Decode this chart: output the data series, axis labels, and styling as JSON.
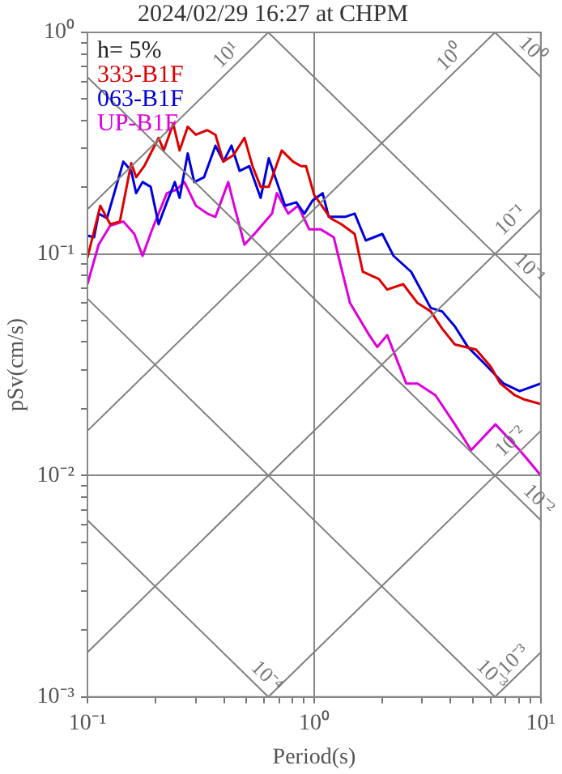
{
  "chart_data": {
    "type": "line",
    "title": "2024/02/29 16:27 at CHPM",
    "xlabel": "Period(s)",
    "ylabel": "pSv(cm/s)",
    "log": "xy",
    "grid": true,
    "legend": "top left",
    "xlim": [
      0.1,
      10
    ],
    "ylim": [
      0.001,
      1
    ],
    "xticks": [
      {
        "value": 0.1,
        "label": "10⁻¹"
      },
      {
        "value": 0.2,
        "label": null
      },
      {
        "value": 0.3,
        "label": null
      },
      {
        "value": 0.4,
        "label": null
      },
      {
        "value": 0.5,
        "label": null
      },
      {
        "value": 0.6,
        "label": null
      },
      {
        "value": 0.7,
        "label": null
      },
      {
        "value": 0.8,
        "label": null
      },
      {
        "value": 0.9,
        "label": null
      },
      {
        "value": 1,
        "label": "10⁰"
      },
      {
        "value": 2,
        "label": null
      },
      {
        "value": 3,
        "label": null
      },
      {
        "value": 4,
        "label": null
      },
      {
        "value": 5,
        "label": null
      },
      {
        "value": 6,
        "label": null
      },
      {
        "value": 7,
        "label": null
      },
      {
        "value": 8,
        "label": null
      },
      {
        "value": 9,
        "label": null
      },
      {
        "value": 10,
        "label": "10¹"
      }
    ],
    "yticks": [
      {
        "value": 0.001,
        "label": "10⁻³"
      },
      {
        "value": 0.002,
        "label": null
      },
      {
        "value": 0.003,
        "label": null
      },
      {
        "value": 0.004,
        "label": null
      },
      {
        "value": 0.005,
        "label": null
      },
      {
        "value": 0.006,
        "label": null
      },
      {
        "value": 0.007,
        "label": null
      },
      {
        "value": 0.008,
        "label": null
      },
      {
        "value": 0.009,
        "label": null
      },
      {
        "value": 0.01,
        "label": "10⁻²"
      },
      {
        "value": 0.02,
        "label": null
      },
      {
        "value": 0.03,
        "label": null
      },
      {
        "value": 0.04,
        "label": null
      },
      {
        "value": 0.05,
        "label": null
      },
      {
        "value": 0.06,
        "label": null
      },
      {
        "value": 0.07,
        "label": null
      },
      {
        "value": 0.08,
        "label": null
      },
      {
        "value": 0.09,
        "label": null
      },
      {
        "value": 0.1,
        "label": "10⁻¹"
      },
      {
        "value": 0.2,
        "label": null
      },
      {
        "value": 0.3,
        "label": null
      },
      {
        "value": 0.4,
        "label": null
      },
      {
        "value": 0.5,
        "label": null
      },
      {
        "value": 0.6,
        "label": null
      },
      {
        "value": 0.7,
        "label": null
      },
      {
        "value": 0.8,
        "label": null
      },
      {
        "value": 0.9,
        "label": null
      },
      {
        "value": 1,
        "label": "10⁰"
      }
    ],
    "annotations": [
      "h= 5%",
      {
        "text": "10¹",
        "x": 0.45,
        "y": 0.716
      },
      {
        "text": "10⁰",
        "x": 4.39,
        "y": 0.699
      },
      {
        "text": "10⁰",
        "x": 8.35,
        "y": 0.752
      },
      {
        "text": "10⁻¹",
        "x": 8.1,
        "y": 0.129
      },
      {
        "text": "10⁻¹",
        "x": 8.1,
        "y": 0.0776
      },
      {
        "text": "10⁻²",
        "x": 8.1,
        "y": 0.0129
      },
      {
        "text": "10⁻²",
        "x": 8.9,
        "y": 0.00706
      },
      {
        "text": "10⁻⁴",
        "x": 0.562,
        "y": 0.00112
      },
      {
        "text": "10⁻³",
        "x": 5.53,
        "y": 0.00114
      },
      {
        "text": "10⁻³",
        "x": 8.35,
        "y": 0.00133
      }
    ],
    "series": [
      {
        "type": "line",
        "color": "#808080",
        "x": [
          0.1,
          0.628
        ],
        "values": [
          0.159,
          1
        ]
      },
      {
        "type": "line",
        "color": "#808080",
        "x": [
          0.1,
          6.28
        ],
        "values": [
          0.0159,
          1
        ]
      },
      {
        "type": "line",
        "color": "#808080",
        "x": [
          0.1,
          10
        ],
        "values": [
          0.00159,
          0.159
        ]
      },
      {
        "type": "line",
        "color": "#808080",
        "x": [
          0.628,
          10
        ],
        "values": [
          0.001,
          0.0159
        ]
      },
      {
        "type": "line",
        "color": "#808080",
        "x": [
          6.28,
          10
        ],
        "values": [
          0.001,
          0.00159
        ]
      },
      {
        "type": "line",
        "color": "#808080",
        "x": [
          6.28,
          10
        ],
        "values": [
          1,
          0.628
        ]
      },
      {
        "type": "line",
        "color": "#808080",
        "x": [
          0.628,
          10
        ],
        "values": [
          1,
          0.0628
        ]
      },
      {
        "type": "line",
        "color": "#808080",
        "x": [
          0.1,
          10
        ],
        "values": [
          0.628,
          0.00628
        ]
      },
      {
        "type": "line",
        "color": "#808080",
        "x": [
          0.1,
          6.28
        ],
        "values": [
          0.0628,
          0.001
        ]
      },
      {
        "type": "line",
        "color": "#808080",
        "x": [
          0.1,
          0.628
        ],
        "values": [
          0.00628,
          0.001
        ]
      },
      {
        "name": "333-B1F",
        "color": "#dd0000",
        "x": [
          0.1,
          0.114,
          0.126,
          0.139,
          0.156,
          0.164,
          0.178,
          0.206,
          0.217,
          0.239,
          0.255,
          0.277,
          0.301,
          0.338,
          0.367,
          0.398,
          0.44,
          0.493,
          0.535,
          0.581,
          0.631,
          0.72,
          0.807,
          0.877,
          0.921,
          1,
          1.18,
          1.32,
          1.51,
          1.64,
          1.93,
          2.1,
          2.47,
          2.86,
          3.27,
          3.67,
          4.18,
          5.18,
          6.01,
          6.63,
          7.69,
          8.48,
          10
        ],
        "values": [
          0.096,
          0.165,
          0.136,
          0.14,
          0.257,
          0.222,
          0.249,
          0.334,
          0.293,
          0.387,
          0.293,
          0.375,
          0.345,
          0.362,
          0.345,
          0.261,
          0.279,
          0.334,
          0.249,
          0.201,
          0.201,
          0.293,
          0.261,
          0.249,
          0.249,
          0.185,
          0.145,
          0.136,
          0.123,
          0.083,
          0.077,
          0.069,
          0.073,
          0.06,
          0.055,
          0.046,
          0.039,
          0.037,
          0.031,
          0.026,
          0.023,
          0.022,
          0.021
        ]
      },
      {
        "name": "063-B1F",
        "color": "#0000dd",
        "x": [
          0.1,
          0.107,
          0.112,
          0.122,
          0.144,
          0.156,
          0.164,
          0.175,
          0.19,
          0.206,
          0.224,
          0.243,
          0.255,
          0.277,
          0.296,
          0.327,
          0.367,
          0.398,
          0.432,
          0.469,
          0.518,
          0.581,
          0.631,
          0.685,
          0.744,
          0.834,
          0.906,
          0.984,
          1.09,
          1.16,
          1.37,
          1.51,
          1.69,
          2.0,
          2.24,
          2.68,
          3.27,
          3.67,
          4.18,
          4.77,
          5.81,
          6.85,
          8.07,
          10
        ],
        "values": [
          0.121,
          0.119,
          0.152,
          0.145,
          0.261,
          0.237,
          0.188,
          0.211,
          0.201,
          0.136,
          0.171,
          0.211,
          0.179,
          0.284,
          0.211,
          0.222,
          0.308,
          0.261,
          0.308,
          0.237,
          0.249,
          0.179,
          0.27,
          0.211,
          0.165,
          0.171,
          0.152,
          0.174,
          0.188,
          0.147,
          0.147,
          0.152,
          0.115,
          0.123,
          0.098,
          0.083,
          0.057,
          0.055,
          0.047,
          0.038,
          0.031,
          0.026,
          0.024,
          0.026
        ]
      },
      {
        "name": "UP-B1F",
        "color": "#dd00dd",
        "x": [
          0.1,
          0.112,
          0.126,
          0.144,
          0.161,
          0.175,
          0.193,
          0.224,
          0.247,
          0.268,
          0.301,
          0.338,
          0.367,
          0.418,
          0.44,
          0.493,
          0.553,
          0.652,
          0.685,
          0.769,
          0.849,
          0.952,
          1.07,
          1.22,
          1.44,
          1.75,
          1.9,
          2.1,
          2.55,
          2.86,
          3.43,
          4.18,
          4.93,
          6.31,
          8.07,
          10
        ],
        "values": [
          0.073,
          0.11,
          0.134,
          0.14,
          0.123,
          0.098,
          0.129,
          0.188,
          0.195,
          0.211,
          0.165,
          0.152,
          0.147,
          0.211,
          0.171,
          0.11,
          0.125,
          0.152,
          0.188,
          0.152,
          0.165,
          0.129,
          0.129,
          0.119,
          0.06,
          0.043,
          0.038,
          0.043,
          0.026,
          0.026,
          0.023,
          0.017,
          0.013,
          0.017,
          0.013,
          0.01
        ]
      }
    ]
  }
}
